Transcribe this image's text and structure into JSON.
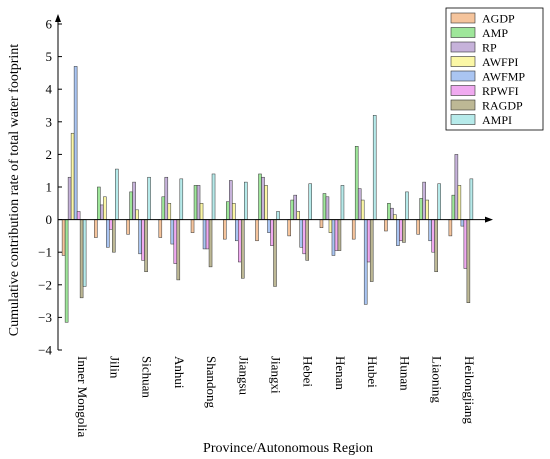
{
  "chart_data": {
    "type": "bar",
    "ylabel": "Cumulative contribution rate of total water footprint",
    "xlabel": "Province/Autonomous Region",
    "ylim": [
      -4,
      6
    ],
    "yticks": [
      "6",
      "5",
      "4",
      "3",
      "2",
      "1",
      "0",
      "−1",
      "−2",
      "−3",
      "−4"
    ],
    "legend_position": "top-right",
    "categories": [
      "Inner Mongolia",
      "Jilin",
      "Sichuan",
      "Anhui",
      "Shandong",
      "Jiangsu",
      "Jiangxi",
      "Hebei",
      "Henan",
      "Hubei",
      "Hunan",
      "Liaoning",
      "Heilongjiang"
    ],
    "series": [
      {
        "name": "AGDP",
        "color": "#f5c49c",
        "values": [
          -1.1,
          -0.55,
          -0.45,
          -0.55,
          -0.4,
          -0.6,
          -0.65,
          -0.5,
          -0.25,
          -0.6,
          -0.35,
          -0.45,
          -0.5
        ]
      },
      {
        "name": "AMP",
        "color": "#9ee69a",
        "values": [
          -3.15,
          1.0,
          0.85,
          0.7,
          1.05,
          0.55,
          1.4,
          0.6,
          0.8,
          2.25,
          0.5,
          0.65,
          0.75
        ]
      },
      {
        "name": "RP",
        "color": "#c6b2da",
        "values": [
          1.3,
          0.45,
          1.15,
          1.3,
          1.05,
          1.2,
          1.3,
          0.75,
          0.7,
          0.95,
          0.35,
          1.15,
          2.0
        ]
      },
      {
        "name": "AWFPI",
        "color": "#fbf7a6",
        "values": [
          2.65,
          0.7,
          0.3,
          0.5,
          0.5,
          0.5,
          1.05,
          0.25,
          -0.4,
          0.6,
          0.15,
          0.6,
          1.05
        ]
      },
      {
        "name": "AWFMP",
        "color": "#aac5f2",
        "values": [
          4.7,
          -0.85,
          -1.05,
          -0.75,
          -0.9,
          -0.65,
          -0.4,
          -0.85,
          -1.1,
          -2.6,
          -0.8,
          -0.65,
          -0.2
        ]
      },
      {
        "name": "RPWFI",
        "color": "#f0aaf0",
        "values": [
          0.25,
          -0.3,
          -1.25,
          -1.35,
          -0.9,
          -1.3,
          -0.8,
          -1.05,
          -0.95,
          -1.3,
          -0.65,
          -1.0,
          -1.5
        ]
      },
      {
        "name": "RAGDP",
        "color": "#bdb895",
        "values": [
          -2.4,
          -1.0,
          -1.6,
          -1.85,
          -1.45,
          -1.8,
          -2.05,
          -1.25,
          -0.95,
          -1.9,
          -0.7,
          -1.6,
          -2.55
        ]
      },
      {
        "name": "AMPI",
        "color": "#b6eaea",
        "values": [
          -2.05,
          1.55,
          1.3,
          1.25,
          1.4,
          1.15,
          0.25,
          1.1,
          1.05,
          3.2,
          0.85,
          1.1,
          1.25
        ]
      }
    ]
  }
}
